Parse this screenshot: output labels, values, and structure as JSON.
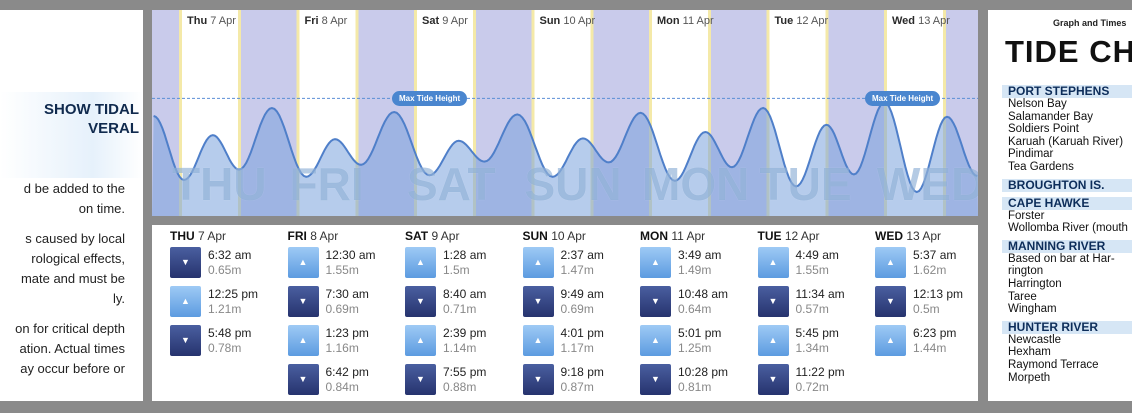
{
  "left": {
    "heading_lines": [
      "SHOW TIDAL",
      "VERAL"
    ],
    "paragraphs": [
      [
        "d be added to the",
        "on time."
      ],
      [
        "s caused by local",
        "rological  effects,",
        "mate and must be",
        "ly."
      ],
      [
        "on for critical depth",
        "ation. Actual times",
        "ay occur before or"
      ]
    ]
  },
  "graph": {
    "days": [
      {
        "name": "Thu",
        "date": "7 Apr",
        "big": "THU"
      },
      {
        "name": "Fri",
        "date": "8 Apr",
        "big": "FRI"
      },
      {
        "name": "Sat",
        "date": "9 Apr",
        "big": "SAT"
      },
      {
        "name": "Sun",
        "date": "10 Apr",
        "big": "SUN"
      },
      {
        "name": "Mon",
        "date": "11 Apr",
        "big": "MON"
      },
      {
        "name": "Tue",
        "date": "12 Apr",
        "big": "TUE"
      },
      {
        "name": "Wed",
        "date": "13 Apr",
        "big": "WED"
      }
    ],
    "max_label_left": "Max Tide Height",
    "max_label_right": "Max Tide Height",
    "colors": {
      "night": "#c9cbeb",
      "day": "#ffffff",
      "water": "#7aa3dc",
      "accent": "#4a86cf"
    }
  },
  "tides": [
    {
      "day": "THU",
      "date": "7 Apr",
      "entries": [
        {
          "dir": "down",
          "time": "6:32 am",
          "height": "0.65m"
        },
        {
          "dir": "up",
          "time": "12:25 pm",
          "height": "1.21m"
        },
        {
          "dir": "down",
          "time": "5:48 pm",
          "height": "0.78m"
        }
      ]
    },
    {
      "day": "FRI",
      "date": "8 Apr",
      "entries": [
        {
          "dir": "up",
          "time": "12:30 am",
          "height": "1.55m"
        },
        {
          "dir": "down",
          "time": "7:30 am",
          "height": "0.69m"
        },
        {
          "dir": "up",
          "time": "1:23 pm",
          "height": "1.16m"
        },
        {
          "dir": "down",
          "time": "6:42 pm",
          "height": "0.84m"
        }
      ]
    },
    {
      "day": "SAT",
      "date": "9 Apr",
      "entries": [
        {
          "dir": "up",
          "time": "1:28 am",
          "height": "1.5m"
        },
        {
          "dir": "down",
          "time": "8:40 am",
          "height": "0.71m"
        },
        {
          "dir": "up",
          "time": "2:39 pm",
          "height": "1.14m"
        },
        {
          "dir": "down",
          "time": "7:55 pm",
          "height": "0.88m"
        }
      ]
    },
    {
      "day": "SUN",
      "date": "10 Apr",
      "entries": [
        {
          "dir": "up",
          "time": "2:37 am",
          "height": "1.47m"
        },
        {
          "dir": "down",
          "time": "9:49 am",
          "height": "0.69m"
        },
        {
          "dir": "up",
          "time": "4:01 pm",
          "height": "1.17m"
        },
        {
          "dir": "down",
          "time": "9:18 pm",
          "height": "0.87m"
        }
      ]
    },
    {
      "day": "MON",
      "date": "11 Apr",
      "entries": [
        {
          "dir": "up",
          "time": "3:49 am",
          "height": "1.49m"
        },
        {
          "dir": "down",
          "time": "10:48 am",
          "height": "0.64m"
        },
        {
          "dir": "up",
          "time": "5:01 pm",
          "height": "1.25m"
        },
        {
          "dir": "down",
          "time": "10:28 pm",
          "height": "0.81m"
        }
      ]
    },
    {
      "day": "TUE",
      "date": "12 Apr",
      "entries": [
        {
          "dir": "up",
          "time": "4:49 am",
          "height": "1.55m"
        },
        {
          "dir": "down",
          "time": "11:34 am",
          "height": "0.57m"
        },
        {
          "dir": "up",
          "time": "5:45 pm",
          "height": "1.34m"
        },
        {
          "dir": "down",
          "time": "11:22 pm",
          "height": "0.72m"
        }
      ]
    },
    {
      "day": "WED",
      "date": "13 Apr",
      "entries": [
        {
          "dir": "up",
          "time": "5:37 am",
          "height": "1.62m"
        },
        {
          "dir": "down",
          "time": "12:13 pm",
          "height": "0.5m"
        },
        {
          "dir": "up",
          "time": "6:23 pm",
          "height": "1.44m"
        }
      ]
    }
  ],
  "right": {
    "subtitle": "Graph and Times",
    "title": "TIDE CH",
    "sections": [
      {
        "name": "PORT STEPHENS",
        "items": [
          "Nelson Bay",
          "Salamander Bay",
          "Soldiers Point",
          "Karuah (Karuah River)",
          "Pindimar",
          "Tea Gardens"
        ]
      },
      {
        "name": "BROUGHTON IS.",
        "items": []
      },
      {
        "name": "CAPE HAWKE",
        "items": [
          "Forster",
          "Wollomba River (mouth"
        ]
      },
      {
        "name": "MANNING RIVER",
        "items": [
          "Based on bar at Har-",
          "rington",
          "Harrington",
          "Taree",
          "Wingham"
        ]
      },
      {
        "name": "HUNTER RIVER",
        "items": [
          "Newcastle",
          "Hexham",
          "Raymond Terrace",
          "Morpeth"
        ]
      }
    ]
  }
}
